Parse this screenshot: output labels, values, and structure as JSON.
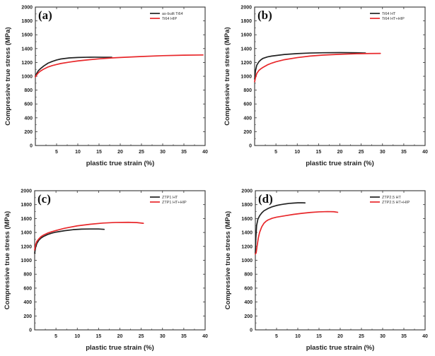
{
  "chart_data": [
    {
      "type": "line",
      "panel_label": "(a)",
      "xlabel": "plastic true strain (%)",
      "ylabel": "Compressive true stress (MPa)",
      "xlim": [
        0,
        40
      ],
      "ylim": [
        0,
        2000
      ],
      "xticks": [
        5,
        10,
        15,
        20,
        25,
        30,
        35,
        40
      ],
      "yticks": [
        0,
        200,
        400,
        600,
        800,
        1000,
        1200,
        1400,
        1600,
        1800,
        2000
      ],
      "legend_position": "top-right",
      "series": [
        {
          "name": "as-built Ti64",
          "color": "#222222",
          "x": [
            0,
            0.3,
            0.7,
            1.2,
            2,
            3,
            4,
            5,
            6,
            8,
            10,
            12,
            14,
            16,
            18
          ],
          "y": [
            1000,
            1040,
            1080,
            1110,
            1150,
            1190,
            1215,
            1235,
            1250,
            1265,
            1272,
            1275,
            1276,
            1275,
            1274
          ]
        },
        {
          "name": "Ti64 HIP",
          "color": "#e8282b",
          "x": [
            0,
            0.3,
            0.7,
            1.2,
            2,
            3,
            4,
            5,
            6,
            8,
            10,
            12,
            15,
            18,
            20,
            25,
            30,
            35,
            39.5
          ],
          "y": [
            990,
            1020,
            1050,
            1075,
            1105,
            1135,
            1155,
            1170,
            1185,
            1205,
            1222,
            1235,
            1252,
            1265,
            1272,
            1286,
            1298,
            1305,
            1308
          ]
        }
      ]
    },
    {
      "type": "line",
      "panel_label": "(b)",
      "xlabel": "plastic true strain (%)",
      "ylabel": "Compressive true stress (MPa)",
      "xlim": [
        0,
        40
      ],
      "ylim": [
        0,
        2000
      ],
      "xticks": [
        5,
        10,
        15,
        20,
        25,
        30,
        35,
        40
      ],
      "yticks": [
        0,
        200,
        400,
        600,
        800,
        1000,
        1200,
        1400,
        1600,
        1800,
        2000
      ],
      "legend_position": "top-right",
      "series": [
        {
          "name": "Ti64 HT",
          "color": "#222222",
          "x": [
            0,
            0.2,
            0.5,
            1,
            1.5,
            2,
            3,
            4,
            5,
            7,
            10,
            13,
            16,
            20,
            24,
            26
          ],
          "y": [
            960,
            1080,
            1160,
            1210,
            1240,
            1260,
            1280,
            1292,
            1300,
            1315,
            1328,
            1336,
            1340,
            1342,
            1340,
            1336
          ]
        },
        {
          "name": "Ti64 HT+HIP",
          "color": "#e8282b",
          "x": [
            0,
            0.2,
            0.5,
            1,
            1.5,
            2,
            3,
            4,
            5,
            7,
            10,
            13,
            16,
            20,
            24,
            27,
            29.5
          ],
          "y": [
            920,
            980,
            1040,
            1085,
            1110,
            1130,
            1165,
            1190,
            1210,
            1240,
            1270,
            1292,
            1306,
            1318,
            1326,
            1329,
            1330
          ]
        }
      ]
    },
    {
      "type": "line",
      "panel_label": "(c)",
      "xlabel": "plastic true strain (%)",
      "ylabel": "Compressive true stress (MPa)",
      "xlim": [
        0,
        40
      ],
      "ylim": [
        0,
        2000
      ],
      "xticks": [
        5,
        10,
        15,
        20,
        25,
        30,
        35,
        40
      ],
      "yticks": [
        0,
        200,
        400,
        600,
        800,
        1000,
        1200,
        1400,
        1600,
        1800,
        2000
      ],
      "legend_position": "top-right",
      "series": [
        {
          "name": "ZTP1 HT",
          "color": "#222222",
          "x": [
            0,
            0.2,
            0.5,
            1,
            1.5,
            2,
            3,
            4,
            5,
            7,
            9,
            11,
            13,
            15,
            16.3
          ],
          "y": [
            1100,
            1180,
            1240,
            1290,
            1320,
            1340,
            1370,
            1390,
            1405,
            1425,
            1440,
            1448,
            1450,
            1450,
            1445
          ]
        },
        {
          "name": "ZTP1 HT+HIP",
          "color": "#e8282b",
          "x": [
            0,
            0.2,
            0.5,
            1,
            1.5,
            2,
            3,
            4,
            5,
            7,
            10,
            13,
            16,
            19,
            22,
            24,
            25.5
          ],
          "y": [
            1150,
            1220,
            1270,
            1310,
            1340,
            1360,
            1390,
            1410,
            1428,
            1460,
            1495,
            1518,
            1535,
            1544,
            1546,
            1542,
            1532
          ]
        }
      ]
    },
    {
      "type": "line",
      "panel_label": "(d)",
      "xlabel": "plastic true strain (%)",
      "ylabel": "Compressive true stress (MPa)",
      "xlim": [
        0,
        40
      ],
      "ylim": [
        0,
        2000
      ],
      "xticks": [
        5,
        10,
        15,
        20,
        25,
        30,
        35,
        40
      ],
      "yticks": [
        0,
        200,
        400,
        600,
        800,
        1000,
        1200,
        1400,
        1600,
        1800,
        2000
      ],
      "legend_position": "top-right",
      "series": [
        {
          "name": "ZTP2.5 HT",
          "color": "#222222",
          "x": [
            0,
            0.1,
            0.3,
            0.6,
            1,
            1.5,
            2,
            3,
            4,
            5,
            6,
            7,
            8,
            9,
            10,
            11,
            11.7
          ],
          "y": [
            1100,
            1300,
            1500,
            1590,
            1640,
            1680,
            1710,
            1745,
            1770,
            1788,
            1800,
            1810,
            1818,
            1822,
            1826,
            1827,
            1825
          ]
        },
        {
          "name": "ZTP2.5 HT+HIP",
          "color": "#e8282b",
          "x": [
            0,
            0.2,
            0.4,
            0.7,
            1,
            1.5,
            2,
            2.5,
            3,
            4,
            5,
            7,
            9,
            11,
            13,
            15,
            17,
            18.5,
            19.4
          ],
          "y": [
            1090,
            1110,
            1200,
            1320,
            1400,
            1480,
            1530,
            1560,
            1580,
            1605,
            1620,
            1640,
            1660,
            1675,
            1688,
            1696,
            1700,
            1698,
            1690
          ]
        }
      ]
    }
  ]
}
